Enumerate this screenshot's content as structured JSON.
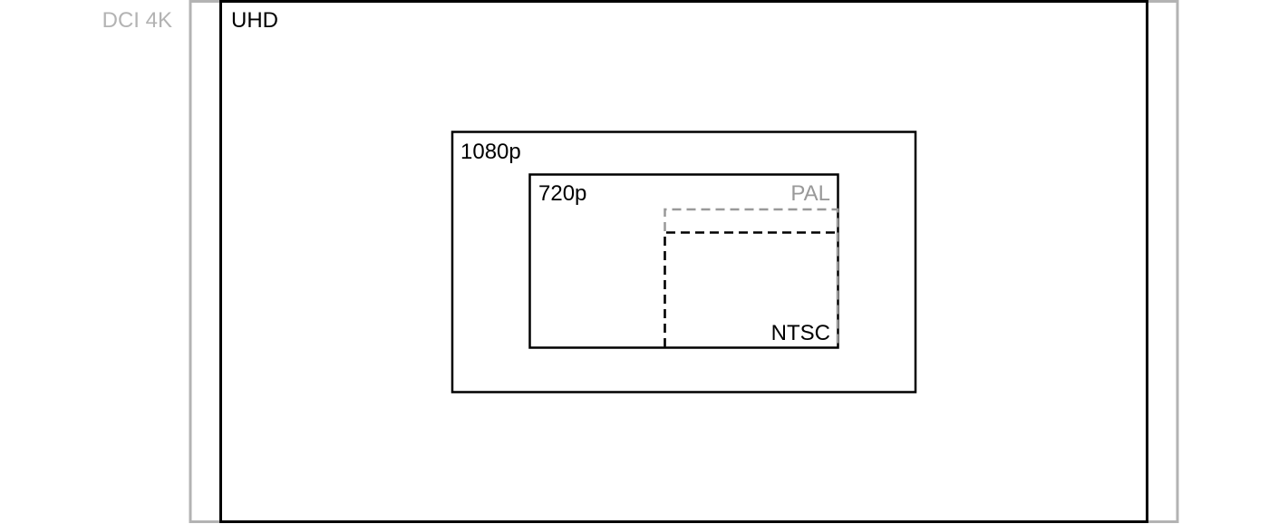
{
  "formats": {
    "dci4k": {
      "label": "DCI 4K",
      "color": "#b3b3b3"
    },
    "uhd": {
      "label": "UHD",
      "color": "#000000"
    },
    "hd1080": {
      "label": "1080p",
      "color": "#000000"
    },
    "hd720": {
      "label": "720p",
      "color": "#000000"
    },
    "pal": {
      "label": "PAL",
      "color": "#999999"
    },
    "ntsc": {
      "label": "NTSC",
      "color": "#000000"
    }
  }
}
